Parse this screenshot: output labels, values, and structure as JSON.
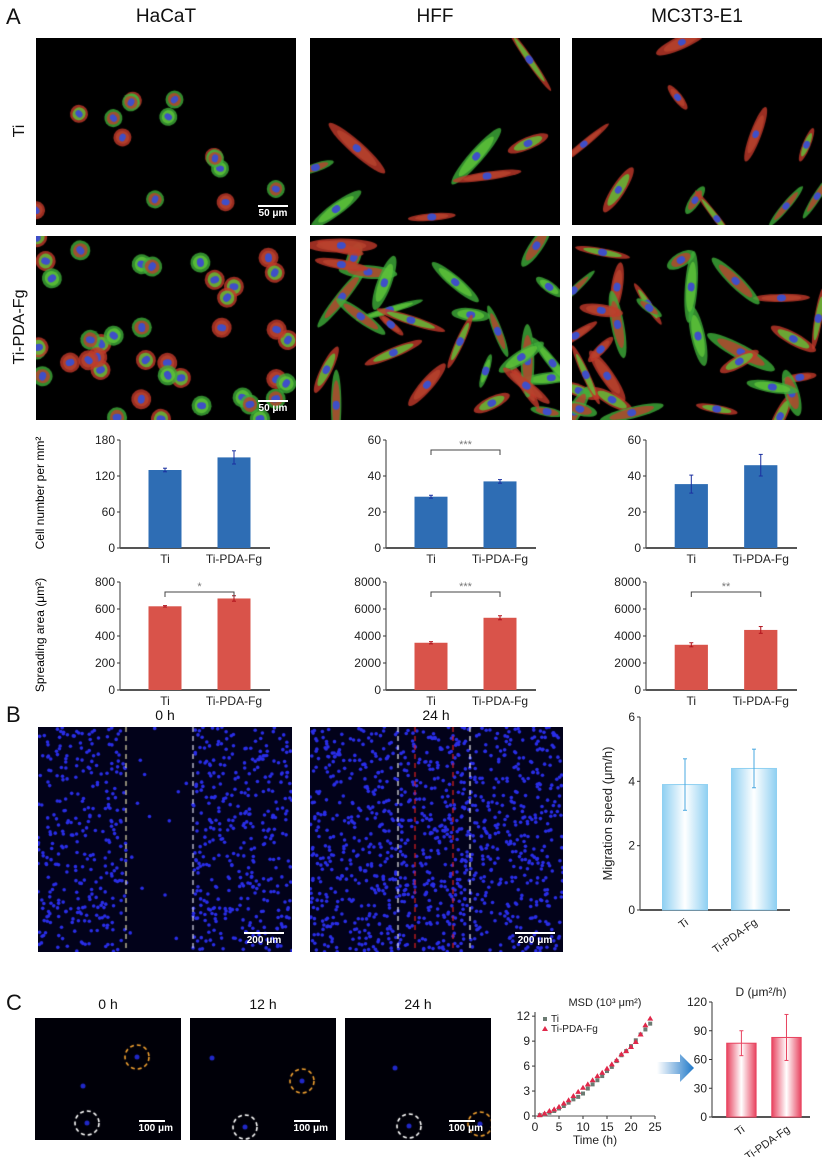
{
  "panels": {
    "a": "A",
    "b": "B",
    "c": "C"
  },
  "panel_a": {
    "columns": [
      "HaCaT",
      "HFF",
      "MC3T3-E1"
    ],
    "rows": [
      "Ti",
      "Ti-PDA-Fg"
    ],
    "scale_bar": "50 μm",
    "ylabel_count": "Cell number per mm²",
    "ylabel_area": "Spreading area (μm²)"
  },
  "panel_b": {
    "times": [
      "0 h",
      "24 h"
    ],
    "scale_bar": "200 μm"
  },
  "panel_c": {
    "times": [
      "0 h",
      "12 h",
      "24 h"
    ],
    "scale_bar": "100 μm"
  },
  "colors": {
    "count_bar": "#2e6db4",
    "area_bar": "#d9534a",
    "migration_bar": "#8fd0f2",
    "d_bar": "#e8435f",
    "arrow": "#1f78c8"
  },
  "chart_data": [
    {
      "id": "a-count-hacat",
      "type": "bar",
      "categories": [
        "Ti",
        "Ti-PDA-Fg"
      ],
      "values": [
        130,
        151
      ],
      "errors": [
        3,
        11
      ],
      "ylim": [
        0,
        180
      ],
      "yticks": [
        0,
        60,
        120,
        180
      ],
      "significance": "",
      "color": "#2e6db4"
    },
    {
      "id": "a-count-hff",
      "type": "bar",
      "categories": [
        "Ti",
        "Ti-PDA-Fg"
      ],
      "values": [
        28.5,
        37
      ],
      "errors": [
        0.8,
        1
      ],
      "ylim": [
        0,
        60
      ],
      "yticks": [
        0,
        20,
        40,
        60
      ],
      "significance": "***",
      "color": "#2e6db4"
    },
    {
      "id": "a-count-mc3t3",
      "type": "bar",
      "categories": [
        "Ti",
        "Ti-PDA-Fg"
      ],
      "values": [
        35.5,
        46
      ],
      "errors": [
        5,
        6
      ],
      "ylim": [
        0,
        60
      ],
      "yticks": [
        0,
        20,
        40,
        60
      ],
      "significance": "",
      "color": "#2e6db4"
    },
    {
      "id": "a-area-hacat",
      "type": "bar",
      "categories": [
        "Ti",
        "Ti-PDA-Fg"
      ],
      "values": [
        620,
        678
      ],
      "errors": [
        5,
        20
      ],
      "ylim": [
        0,
        800
      ],
      "yticks": [
        0,
        200,
        400,
        600,
        800
      ],
      "significance": "*",
      "color": "#d9534a"
    },
    {
      "id": "a-area-hff",
      "type": "bar",
      "categories": [
        "Ti",
        "Ti-PDA-Fg"
      ],
      "values": [
        3500,
        5350
      ],
      "errors": [
        80,
        150
      ],
      "ylim": [
        0,
        8000
      ],
      "yticks": [
        0,
        2000,
        4000,
        6000,
        8000
      ],
      "significance": "***",
      "color": "#d9534a"
    },
    {
      "id": "a-area-mc3t3",
      "type": "bar",
      "categories": [
        "Ti",
        "Ti-PDA-Fg"
      ],
      "values": [
        3350,
        4450
      ],
      "errors": [
        150,
        250
      ],
      "ylim": [
        0,
        8000
      ],
      "yticks": [
        0,
        2000,
        4000,
        6000,
        8000
      ],
      "significance": "**",
      "color": "#d9534a"
    },
    {
      "id": "b-migration",
      "type": "bar",
      "categories": [
        "Ti",
        "Ti-PDA-Fg"
      ],
      "values": [
        3.9,
        4.4
      ],
      "errors": [
        0.8,
        0.6
      ],
      "ylim": [
        0,
        6
      ],
      "yticks": [
        0,
        2,
        4,
        6
      ],
      "ylabel": "Migration speed (μm/h)",
      "significance": "",
      "color": "#8fd0f2"
    },
    {
      "id": "c-msd",
      "type": "scatter",
      "title": "MSD (10³ μm²)",
      "xlabel": "Time (h)",
      "xlim": [
        0,
        25
      ],
      "ylim": [
        0,
        12.5
      ],
      "xticks": [
        0,
        5,
        10,
        15,
        20,
        25
      ],
      "yticks": [
        0,
        3,
        6,
        9,
        12
      ],
      "legend": "top-left",
      "x": [
        1,
        2,
        3,
        4,
        5,
        6,
        7,
        8,
        9,
        10,
        11,
        12,
        13,
        14,
        15,
        16,
        17,
        18,
        19,
        20,
        21,
        22,
        23,
        24
      ],
      "series": [
        {
          "name": "Ti",
          "marker": "square",
          "color": "#6b7b72",
          "values": [
            0.1,
            0.2,
            0.4,
            0.6,
            0.9,
            1.2,
            1.6,
            2.0,
            2.3,
            2.7,
            3.3,
            3.8,
            4.3,
            4.8,
            5.4,
            5.9,
            6.6,
            7.3,
            7.8,
            8.4,
            9.1,
            9.8,
            10.4,
            11.1
          ]
        },
        {
          "name": "Ti-PDA-Fg",
          "marker": "triangle",
          "color": "#e0284a",
          "values": [
            0.1,
            0.3,
            0.6,
            0.8,
            1.1,
            1.5,
            1.9,
            2.4,
            2.9,
            3.4,
            3.8,
            4.3,
            4.8,
            5.2,
            5.7,
            6.2,
            6.7,
            7.4,
            7.8,
            8.3,
            8.9,
            9.8,
            10.9,
            11.7
          ]
        }
      ]
    },
    {
      "id": "c-diffusion",
      "type": "bar",
      "title": "D (μm²/h)",
      "categories": [
        "Ti",
        "Ti-PDA-Fg"
      ],
      "values": [
        77,
        83
      ],
      "errors": [
        13,
        24
      ],
      "ylim": [
        0,
        120
      ],
      "yticks": [
        0,
        30,
        60,
        90,
        120
      ],
      "significance": "",
      "color": "#e8435f"
    }
  ]
}
